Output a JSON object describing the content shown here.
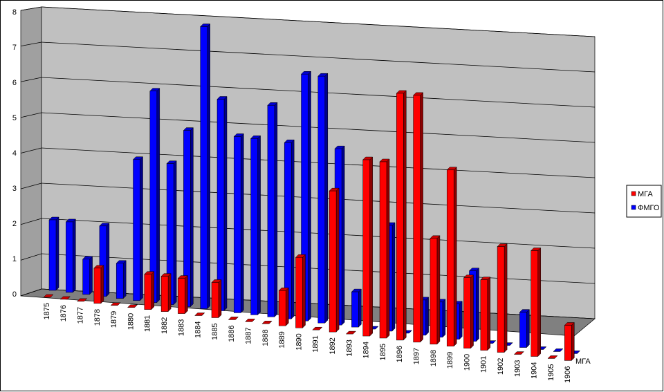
{
  "chart_data": {
    "type": "bar3d",
    "categories": [
      "1875",
      "1876",
      "1877",
      "1878",
      "1879",
      "1880",
      "1881",
      "1882",
      "1883",
      "1884",
      "1885",
      "1886",
      "1887",
      "1888",
      "1889",
      "1890",
      "1891",
      "1892",
      "1893",
      "1894",
      "1895",
      "1896",
      "1897",
      "1898",
      "1899",
      "1900",
      "1901",
      "1902",
      "1903",
      "1904",
      "1905",
      "1906"
    ],
    "series": [
      {
        "name": "МГА",
        "color": "#ff0000",
        "values": [
          0,
          0,
          0,
          1,
          0,
          0,
          1,
          1,
          1,
          0,
          1,
          0,
          0,
          0,
          1,
          2,
          0,
          4,
          0,
          5,
          5,
          7,
          7,
          3,
          5,
          2,
          2,
          3,
          0,
          3,
          0,
          1
        ]
      },
      {
        "name": "ФМГО",
        "color": "#0000ff",
        "values": [
          2,
          2,
          1,
          2,
          1,
          4,
          6,
          4,
          5,
          8,
          6,
          5,
          5,
          6,
          5,
          7,
          7,
          5,
          1,
          0,
          3,
          0,
          1,
          1,
          1,
          2,
          0,
          0,
          1,
          0,
          0,
          0
        ]
      }
    ],
    "ylim": [
      0,
      8
    ],
    "yticks": [
      0,
      1,
      2,
      3,
      4,
      5,
      6,
      7,
      8
    ],
    "grid": true
  }
}
